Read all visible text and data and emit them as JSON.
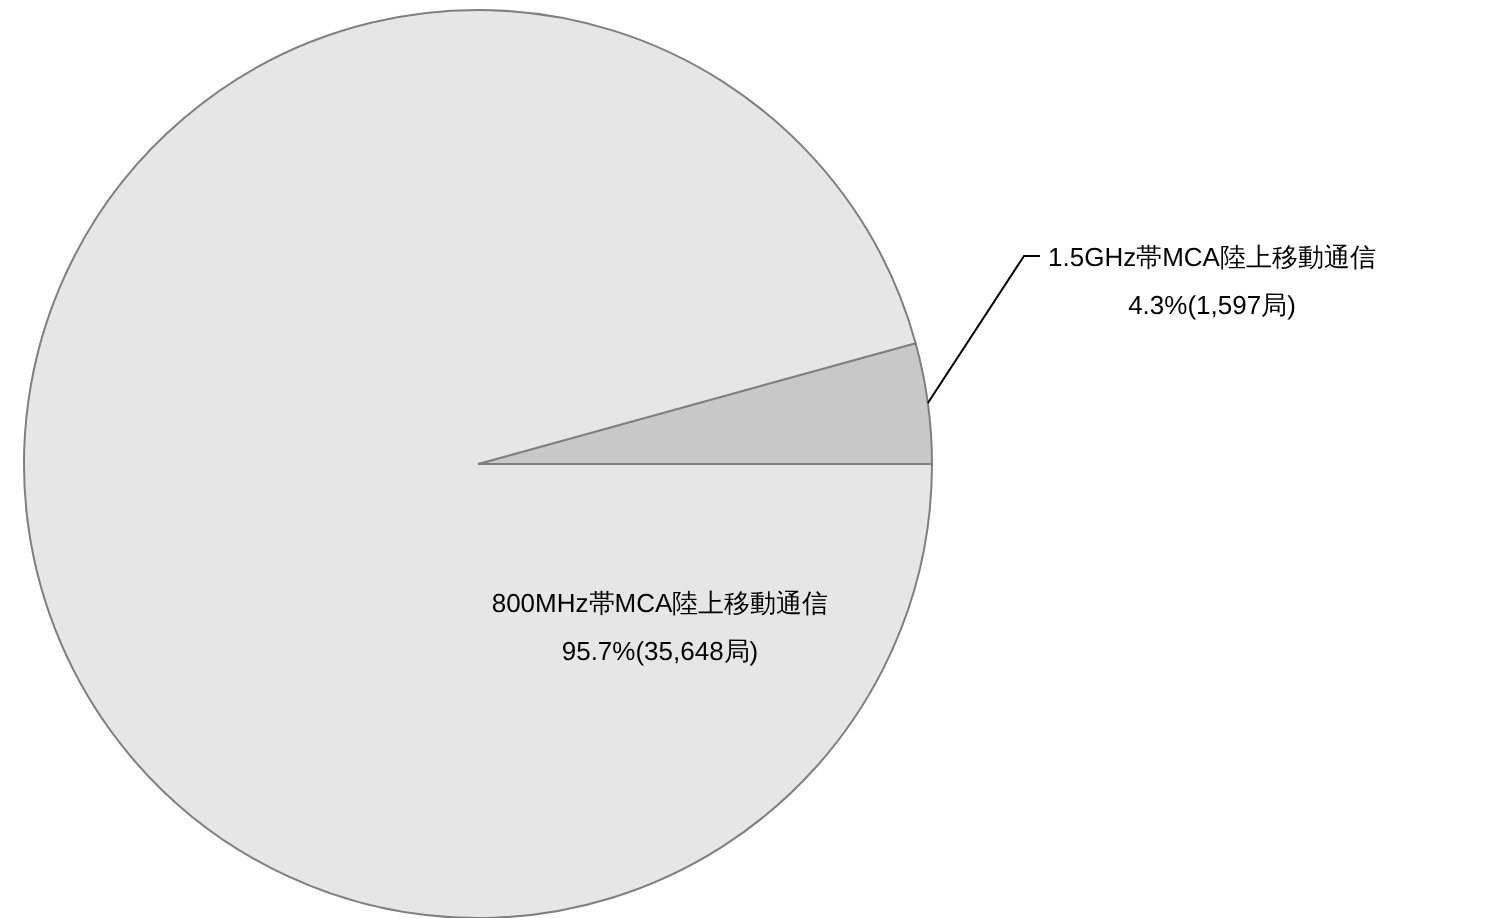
{
  "chart_data": {
    "type": "pie",
    "categories": [
      "1.5GHz帯MCA陸上移動通信",
      "800MHz帯MCA陸上移動通信"
    ],
    "values": [
      1597,
      35648
    ],
    "colors": [
      "#c8c8c8",
      "#e6e6e6"
    ],
    "value_labels": [
      "4.3%(1,597局)",
      "95.7%(35,648局)"
    ]
  }
}
